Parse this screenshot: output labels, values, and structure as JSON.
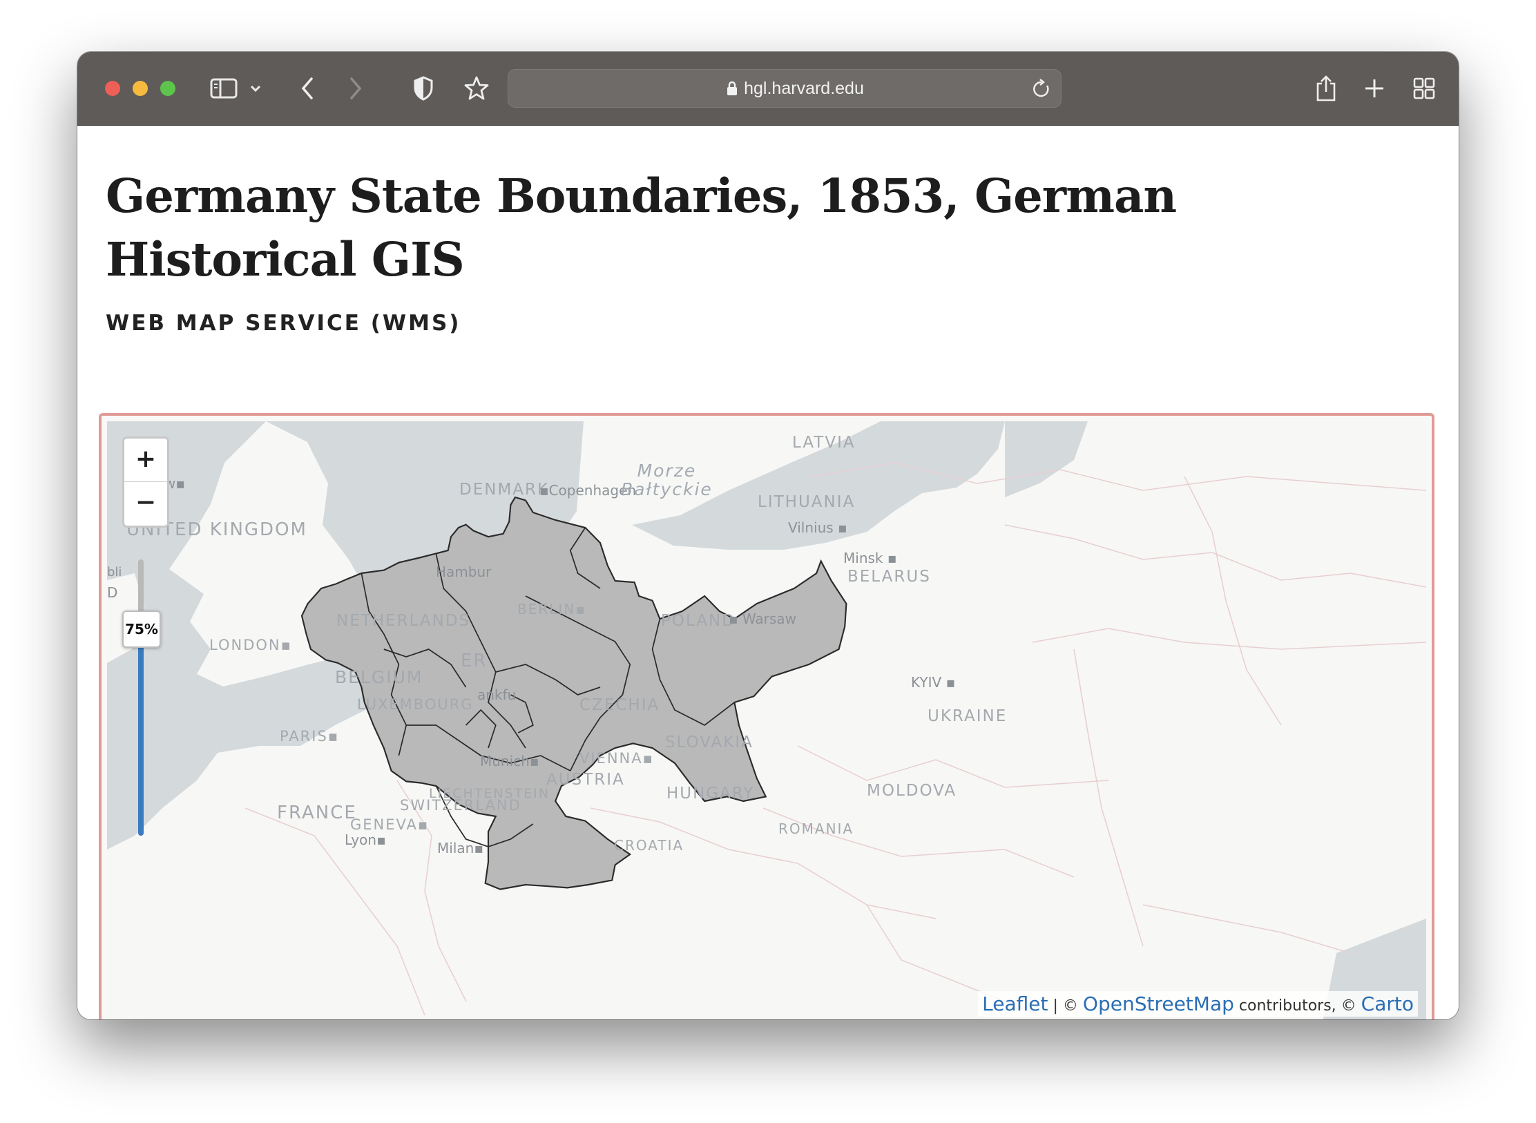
{
  "browser": {
    "url": "hgl.harvard.edu"
  },
  "page": {
    "title": "Germany State Boundaries, 1853, German Historical GIS",
    "section_heading": "WEB MAP SERVICE (WMS)"
  },
  "map": {
    "zoom_in_label": "+",
    "zoom_out_label": "−",
    "opacity_label": "75%",
    "opacity_value": 0.75,
    "attribution": {
      "leaflet": "Leaflet",
      "sep": " | © ",
      "osm": "OpenStreetMap",
      "contributors": " contributors, © ",
      "carto": "Carto"
    },
    "labels": {
      "latvia": "LATVIA",
      "lithuania": "LITHUANIA",
      "vilnius": "Vilnius",
      "minsk": "Minsk",
      "belarus": "BELARUS",
      "poland": "POLAND",
      "warsaw": "Warsaw",
      "kyiv": "KYIV",
      "ukraine": "UKRAINE",
      "moldova": "MOLDOVA",
      "romania": "ROMANIA",
      "denmark": "DENMARK",
      "copenhagen": "Copenhagen",
      "baltic": "Morze\nBałtyckie",
      "united_kingdom": "UNITED KINGDOM",
      "glasgow_partial": "gow",
      "london": "LONDON",
      "netherlands": "NETHERLANDS",
      "belgium": "BELGIUM",
      "luxembourg": "LUXEMBOURG",
      "paris": "PARIS",
      "france": "FRANCE",
      "geneva": "GENEVA",
      "lyon": "Lyon",
      "milan": "Milan",
      "switzerland": "SWITZERLAND",
      "liechtenstein": "LIECHTENSTEIN",
      "austria": "AUSTRIA",
      "vienna": "VIENNA",
      "czechia": "CZECHIA",
      "slovakia": "SLOVAKIA",
      "hungary": "HUNGARY",
      "croatia": "CROATIA",
      "berlin": "BERLIN",
      "munich": "Munich",
      "hamburg_partial": "Hambur",
      "frankfurt_partial": "ankfu",
      "germany_partial": "ER",
      "left_partial_1": "bli",
      "left_partial_2": "D"
    }
  },
  "colors": {
    "toolbar": "#5e5b59",
    "map_frame_border": "#e19b97",
    "layer_fill": "#b9b9b9",
    "water": "#d4d9dc",
    "slider_fill": "#3a7bbf",
    "link": "#2a6eb4"
  },
  "icons": [
    "sidebar-icon",
    "chevron-down-icon",
    "back-icon",
    "forward-icon",
    "shield-icon",
    "star-icon",
    "lock-icon",
    "reload-icon",
    "share-icon",
    "new-tab-icon",
    "tab-overview-icon"
  ]
}
